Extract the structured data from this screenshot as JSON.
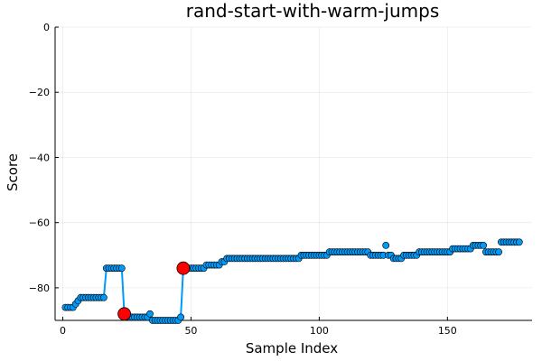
{
  "chart_data": {
    "type": "scatter",
    "title": "rand-start-with-warm-jumps",
    "xlabel": "Sample Index",
    "ylabel": "Score",
    "xlim": [
      -3,
      183
    ],
    "ylim": [
      -90,
      0
    ],
    "xticks": [
      0,
      50,
      100,
      150
    ],
    "yticks": [
      0,
      -20,
      -40,
      -60,
      -80
    ],
    "grid": true,
    "legend": "none",
    "series_color": "#009af9",
    "highlight_color": "#ff0000",
    "line_segments": [
      [
        [
          1,
          -86
        ],
        [
          2,
          -86
        ],
        [
          3,
          -86
        ],
        [
          4,
          -86
        ],
        [
          5,
          -85
        ],
        [
          6,
          -84
        ],
        [
          7,
          -83
        ],
        [
          8,
          -83
        ],
        [
          9,
          -83
        ],
        [
          10,
          -83
        ],
        [
          11,
          -83
        ],
        [
          12,
          -83
        ],
        [
          13,
          -83
        ],
        [
          14,
          -83
        ],
        [
          15,
          -83
        ],
        [
          16,
          -83
        ],
        [
          17,
          -74
        ],
        [
          18,
          -74
        ],
        [
          19,
          -74
        ],
        [
          20,
          -74
        ],
        [
          21,
          -74
        ],
        [
          22,
          -74
        ],
        [
          23,
          -74
        ],
        [
          24,
          -88
        ],
        [
          25,
          -88
        ],
        [
          26,
          -89
        ],
        [
          27,
          -89
        ],
        [
          28,
          -89
        ],
        [
          29,
          -89
        ],
        [
          30,
          -89
        ],
        [
          31,
          -89
        ],
        [
          32,
          -89
        ],
        [
          33,
          -89
        ],
        [
          34,
          -88
        ],
        [
          35,
          -90
        ],
        [
          36,
          -90
        ],
        [
          37,
          -90
        ],
        [
          38,
          -90
        ],
        [
          39,
          -90
        ],
        [
          40,
          -90
        ],
        [
          41,
          -90
        ],
        [
          42,
          -90
        ],
        [
          43,
          -90
        ],
        [
          44,
          -90
        ],
        [
          45,
          -90
        ],
        [
          46,
          -89
        ],
        [
          47,
          -74
        ],
        [
          48,
          -74
        ],
        [
          49,
          -74
        ],
        [
          50,
          -74
        ],
        [
          51,
          -74
        ],
        [
          52,
          -74
        ],
        [
          53,
          -74
        ],
        [
          54,
          -74
        ],
        [
          55,
          -74
        ]
      ]
    ],
    "points": [
      [
        1,
        -86
      ],
      [
        2,
        -86
      ],
      [
        3,
        -86
      ],
      [
        4,
        -86
      ],
      [
        5,
        -85
      ],
      [
        6,
        -84
      ],
      [
        7,
        -83
      ],
      [
        8,
        -83
      ],
      [
        9,
        -83
      ],
      [
        10,
        -83
      ],
      [
        11,
        -83
      ],
      [
        12,
        -83
      ],
      [
        13,
        -83
      ],
      [
        14,
        -83
      ],
      [
        15,
        -83
      ],
      [
        16,
        -83
      ],
      [
        17,
        -74
      ],
      [
        18,
        -74
      ],
      [
        19,
        -74
      ],
      [
        20,
        -74
      ],
      [
        21,
        -74
      ],
      [
        22,
        -74
      ],
      [
        23,
        -74
      ],
      [
        24,
        -88
      ],
      [
        25,
        -88
      ],
      [
        26,
        -89
      ],
      [
        27,
        -89
      ],
      [
        28,
        -89
      ],
      [
        29,
        -89
      ],
      [
        30,
        -89
      ],
      [
        31,
        -89
      ],
      [
        32,
        -89
      ],
      [
        33,
        -89
      ],
      [
        34,
        -88
      ],
      [
        35,
        -90
      ],
      [
        36,
        -90
      ],
      [
        37,
        -90
      ],
      [
        38,
        -90
      ],
      [
        39,
        -90
      ],
      [
        40,
        -90
      ],
      [
        41,
        -90
      ],
      [
        42,
        -90
      ],
      [
        43,
        -90
      ],
      [
        44,
        -90
      ],
      [
        45,
        -90
      ],
      [
        46,
        -89
      ],
      [
        47,
        -74
      ],
      [
        48,
        -74
      ],
      [
        49,
        -74
      ],
      [
        50,
        -74
      ],
      [
        51,
        -74
      ],
      [
        52,
        -74
      ],
      [
        53,
        -74
      ],
      [
        54,
        -74
      ],
      [
        55,
        -74
      ],
      [
        56,
        -73
      ],
      [
        57,
        -73
      ],
      [
        58,
        -73
      ],
      [
        59,
        -73
      ],
      [
        60,
        -73
      ],
      [
        61,
        -73
      ],
      [
        62,
        -72
      ],
      [
        63,
        -72
      ],
      [
        64,
        -71
      ],
      [
        65,
        -71
      ],
      [
        66,
        -71
      ],
      [
        67,
        -71
      ],
      [
        68,
        -71
      ],
      [
        69,
        -71
      ],
      [
        70,
        -71
      ],
      [
        71,
        -71
      ],
      [
        72,
        -71
      ],
      [
        73,
        -71
      ],
      [
        74,
        -71
      ],
      [
        75,
        -71
      ],
      [
        76,
        -71
      ],
      [
        77,
        -71
      ],
      [
        78,
        -71
      ],
      [
        79,
        -71
      ],
      [
        80,
        -71
      ],
      [
        81,
        -71
      ],
      [
        82,
        -71
      ],
      [
        83,
        -71
      ],
      [
        84,
        -71
      ],
      [
        85,
        -71
      ],
      [
        86,
        -71
      ],
      [
        87,
        -71
      ],
      [
        88,
        -71
      ],
      [
        89,
        -71
      ],
      [
        90,
        -71
      ],
      [
        91,
        -71
      ],
      [
        92,
        -71
      ],
      [
        93,
        -70
      ],
      [
        94,
        -70
      ],
      [
        95,
        -70
      ],
      [
        96,
        -70
      ],
      [
        97,
        -70
      ],
      [
        98,
        -70
      ],
      [
        99,
        -70
      ],
      [
        100,
        -70
      ],
      [
        101,
        -70
      ],
      [
        102,
        -70
      ],
      [
        103,
        -70
      ],
      [
        104,
        -69
      ],
      [
        105,
        -69
      ],
      [
        106,
        -69
      ],
      [
        107,
        -69
      ],
      [
        108,
        -69
      ],
      [
        109,
        -69
      ],
      [
        110,
        -69
      ],
      [
        111,
        -69
      ],
      [
        112,
        -69
      ],
      [
        113,
        -69
      ],
      [
        114,
        -69
      ],
      [
        115,
        -69
      ],
      [
        116,
        -69
      ],
      [
        117,
        -69
      ],
      [
        118,
        -69
      ],
      [
        119,
        -69
      ],
      [
        120,
        -70
      ],
      [
        121,
        -70
      ],
      [
        122,
        -70
      ],
      [
        123,
        -70
      ],
      [
        124,
        -70
      ],
      [
        125,
        -70
      ],
      [
        126,
        -67
      ],
      [
        127,
        -70
      ],
      [
        128,
        -70
      ],
      [
        129,
        -71
      ],
      [
        130,
        -71
      ],
      [
        131,
        -71
      ],
      [
        132,
        -71
      ],
      [
        133,
        -70
      ],
      [
        134,
        -70
      ],
      [
        135,
        -70
      ],
      [
        136,
        -70
      ],
      [
        137,
        -70
      ],
      [
        138,
        -70
      ],
      [
        139,
        -69
      ],
      [
        140,
        -69
      ],
      [
        141,
        -69
      ],
      [
        142,
        -69
      ],
      [
        143,
        -69
      ],
      [
        144,
        -69
      ],
      [
        145,
        -69
      ],
      [
        146,
        -69
      ],
      [
        147,
        -69
      ],
      [
        148,
        -69
      ],
      [
        149,
        -69
      ],
      [
        150,
        -69
      ],
      [
        151,
        -69
      ],
      [
        152,
        -68
      ],
      [
        153,
        -68
      ],
      [
        154,
        -68
      ],
      [
        155,
        -68
      ],
      [
        156,
        -68
      ],
      [
        157,
        -68
      ],
      [
        158,
        -68
      ],
      [
        159,
        -68
      ],
      [
        160,
        -67
      ],
      [
        161,
        -67
      ],
      [
        162,
        -67
      ],
      [
        163,
        -67
      ],
      [
        164,
        -67
      ],
      [
        165,
        -69
      ],
      [
        166,
        -69
      ],
      [
        167,
        -69
      ],
      [
        168,
        -69
      ],
      [
        169,
        -69
      ],
      [
        170,
        -69
      ],
      [
        171,
        -66
      ],
      [
        172,
        -66
      ],
      [
        173,
        -66
      ],
      [
        174,
        -66
      ],
      [
        175,
        -66
      ],
      [
        176,
        -66
      ],
      [
        177,
        -66
      ],
      [
        178,
        -66
      ]
    ],
    "highlights": [
      [
        24,
        -88
      ],
      [
        47,
        -74
      ]
    ]
  }
}
